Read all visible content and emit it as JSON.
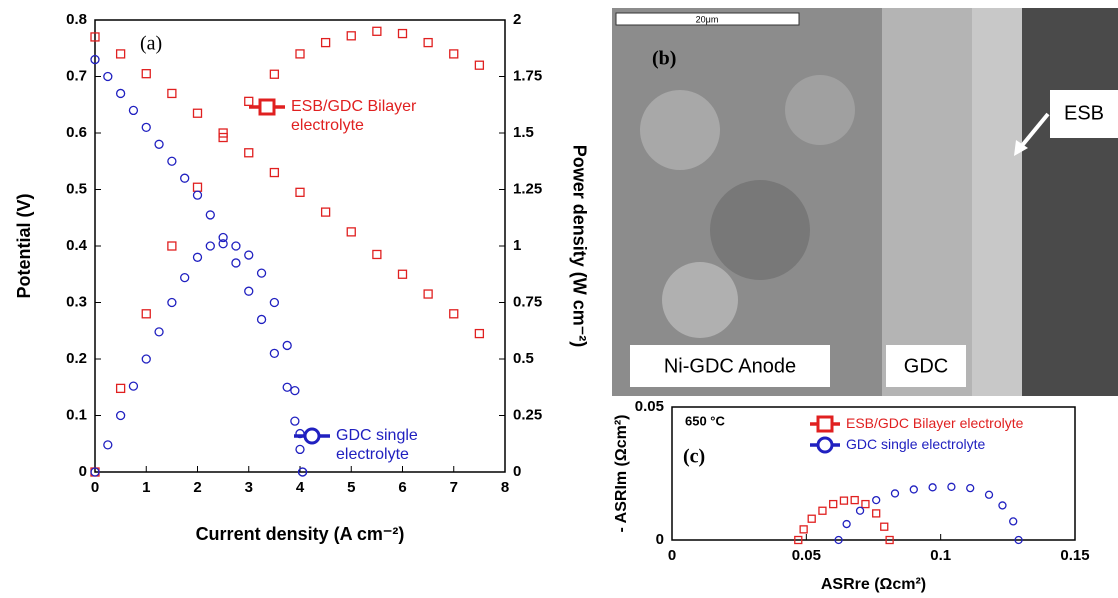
{
  "chart_data": [
    {
      "type": "scatter",
      "annotation": "(a)",
      "x_label": "Current density (A cm⁻²)",
      "y_label": "Potential (V)",
      "y2_label": "Power density (W cm⁻²)",
      "xlim": [
        0,
        8
      ],
      "xticks": [
        0,
        1,
        2,
        3,
        4,
        5,
        6,
        7,
        8
      ],
      "ylim": [
        0,
        0.8
      ],
      "yticks": [
        0,
        0.1,
        0.2,
        0.3,
        0.4,
        0.5,
        0.6,
        0.7,
        0.8
      ],
      "y2lim": [
        0,
        2
      ],
      "y2ticks": [
        0,
        0.25,
        0.5,
        0.75,
        1,
        1.25,
        1.5,
        1.75,
        2
      ],
      "series": [
        {
          "name": "ESB/GDC Bilayer electrolyte",
          "color": "#e02020",
          "marker": "square",
          "x": [
            0,
            0.5,
            1,
            1.5,
            2,
            2.5,
            3,
            3.5,
            4,
            4.5,
            5,
            5.5,
            6,
            6.5,
            7,
            7.5
          ],
          "values": [
            0.77,
            0.74,
            0.705,
            0.67,
            0.635,
            0.6,
            0.565,
            0.53,
            0.495,
            0.46,
            0.425,
            0.385,
            0.35,
            0.315,
            0.28,
            0.245
          ]
        },
        {
          "color": "#e02020",
          "marker": "square",
          "axis": "y2",
          "x": [
            0,
            0.5,
            1,
            1.5,
            2,
            2.5,
            3,
            3.5,
            4,
            4.5,
            5,
            5.5,
            6,
            6.5,
            7,
            7.5
          ],
          "values": [
            0,
            0.37,
            0.7,
            1.0,
            1.26,
            1.48,
            1.64,
            1.76,
            1.85,
            1.9,
            1.93,
            1.95,
            1.94,
            1.9,
            1.85,
            1.8
          ]
        },
        {
          "name": "GDC single electrolyte",
          "color": "#2020c0",
          "marker": "circle",
          "x": [
            0,
            0.25,
            0.5,
            0.75,
            1,
            1.25,
            1.5,
            1.75,
            2,
            2.25,
            2.5,
            2.75,
            3,
            3.25,
            3.5,
            3.75,
            3.9,
            4,
            4.05
          ],
          "values": [
            0.73,
            0.7,
            0.67,
            0.64,
            0.61,
            0.58,
            0.55,
            0.52,
            0.49,
            0.455,
            0.415,
            0.37,
            0.32,
            0.27,
            0.21,
            0.15,
            0.09,
            0.04,
            0
          ]
        },
        {
          "color": "#2020c0",
          "marker": "circle",
          "axis": "y2",
          "x": [
            0,
            0.25,
            0.5,
            0.75,
            1,
            1.25,
            1.5,
            1.75,
            2,
            2.25,
            2.5,
            2.75,
            3,
            3.25,
            3.5,
            3.75,
            3.9,
            4,
            4.05
          ],
          "values": [
            0,
            0.12,
            0.25,
            0.38,
            0.5,
            0.62,
            0.75,
            0.86,
            0.95,
            1.0,
            1.01,
            1.0,
            0.96,
            0.88,
            0.75,
            0.56,
            0.36,
            0.17,
            0
          ]
        }
      ]
    },
    {
      "type": "scatter",
      "annotation": "(c)",
      "temperature": "650 °C",
      "x_label": "ASRre (Ωcm²)",
      "y_label": "- ASRIm (Ωcm²)",
      "xlim": [
        0,
        0.15
      ],
      "xticks": [
        0,
        0.05,
        0.1,
        0.15
      ],
      "ylim": [
        0,
        0.05
      ],
      "yticks": [
        0,
        0.05
      ],
      "series": [
        {
          "name": "ESB/GDC Bilayer electrolyte",
          "color": "#e02020",
          "marker": "square",
          "x": [
            0.047,
            0.049,
            0.052,
            0.056,
            0.06,
            0.064,
            0.068,
            0.072,
            0.076,
            0.079,
            0.081
          ],
          "values": [
            0,
            0.004,
            0.008,
            0.011,
            0.0135,
            0.0148,
            0.015,
            0.0135,
            0.01,
            0.005,
            0
          ]
        },
        {
          "name": "GDC single electrolyte",
          "color": "#2020c0",
          "marker": "circle",
          "x": [
            0.062,
            0.065,
            0.07,
            0.076,
            0.083,
            0.09,
            0.097,
            0.104,
            0.111,
            0.118,
            0.123,
            0.127,
            0.129
          ],
          "values": [
            0,
            0.006,
            0.011,
            0.015,
            0.0175,
            0.019,
            0.0198,
            0.02,
            0.0195,
            0.017,
            0.013,
            0.007,
            0
          ]
        }
      ]
    }
  ],
  "micrograph": {
    "panel_label": "(b)",
    "scale_bar": "20μm",
    "labels": [
      "Ni-GDC Anode",
      "GDC",
      "ESB"
    ]
  }
}
